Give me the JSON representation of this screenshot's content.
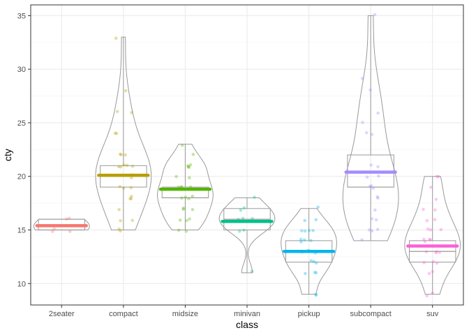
{
  "chart_data": {
    "type": "violin-box-jitter",
    "xlabel": "class",
    "ylabel": "cty",
    "ylim": [
      8,
      36
    ],
    "y_ticks": [
      10,
      15,
      20,
      25,
      30,
      35
    ],
    "grid": true,
    "categories": [
      "2seater",
      "compact",
      "midsize",
      "minivan",
      "pickup",
      "subcompact",
      "suv"
    ],
    "colors": [
      "#F8766D",
      "#B79F00",
      "#53B400",
      "#00C08B",
      "#00B6EB",
      "#A58AFF",
      "#FB61D7"
    ],
    "outline_color": "#999999",
    "mean": [
      15.4,
      20.1,
      18.8,
      15.8,
      13.0,
      20.4,
      13.5
    ],
    "box": [
      {
        "q1": 15,
        "median": 15,
        "q3": 16,
        "min": 15,
        "max": 16
      },
      {
        "q1": 19,
        "median": 20,
        "q3": 21,
        "min": 15,
        "max": 33
      },
      {
        "q1": 18,
        "median": 18,
        "q3": 19,
        "min": 15,
        "max": 23
      },
      {
        "q1": 15,
        "median": 16,
        "q3": 17,
        "min": 11,
        "max": 18
      },
      {
        "q1": 12,
        "median": 13,
        "q3": 14,
        "min": 9,
        "max": 17
      },
      {
        "q1": 19,
        "median": 19,
        "q3": 22,
        "min": 14,
        "max": 35
      },
      {
        "q1": 12,
        "median": 13,
        "q3": 14,
        "min": 9,
        "max": 20
      }
    ],
    "points": [
      [
        15,
        15,
        15,
        16,
        16
      ],
      [
        15,
        15,
        16,
        16,
        17,
        18,
        18,
        18,
        19,
        19,
        19,
        20,
        20,
        20,
        21,
        21,
        21,
        21,
        21,
        22,
        22,
        22,
        24,
        24,
        26,
        26,
        28,
        33
      ],
      [
        15,
        15,
        16,
        16,
        16,
        17,
        17,
        17,
        18,
        18,
        18,
        18,
        19,
        19,
        19,
        19,
        20,
        20,
        21,
        21,
        21,
        21,
        22,
        23
      ],
      [
        11,
        15,
        15,
        16,
        16,
        16,
        17,
        17,
        18
      ],
      [
        9,
        9,
        11,
        11,
        11,
        12,
        12,
        12,
        13,
        13,
        13,
        13,
        14,
        14,
        14,
        14,
        15,
        15,
        15,
        15,
        16,
        16,
        17
      ],
      [
        14,
        15,
        15,
        15,
        16,
        16,
        17,
        18,
        18,
        19,
        19,
        19,
        20,
        20,
        21,
        21,
        24,
        24,
        25,
        26,
        28,
        29,
        35
      ],
      [
        9,
        9,
        11,
        11,
        12,
        12,
        12,
        13,
        13,
        13,
        13,
        14,
        14,
        14,
        14,
        15,
        15,
        15,
        16,
        16,
        17,
        17,
        18,
        19,
        20,
        20
      ]
    ]
  }
}
